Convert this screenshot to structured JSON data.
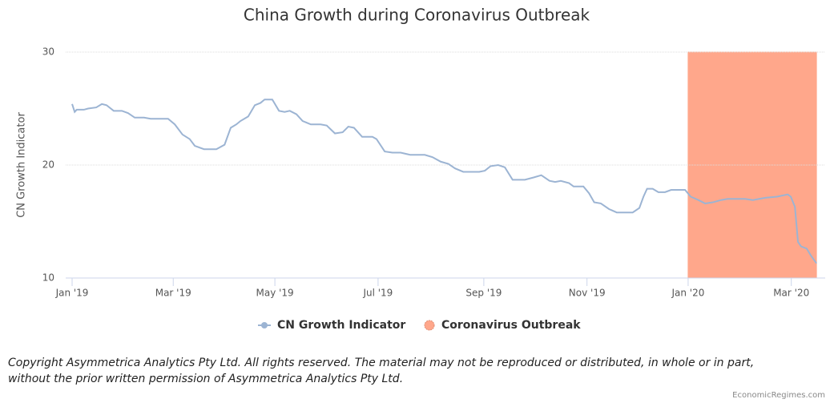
{
  "chart_data": {
    "type": "line",
    "title": "China Growth during Coronavirus Outbreak",
    "y_label": "CN Growth Indicator",
    "x": [
      0,
      0.05,
      0.09,
      0.23,
      0.31,
      0.47,
      0.58,
      0.67,
      0.81,
      0.97,
      1.09,
      1.22,
      1.4,
      1.53,
      1.69,
      1.87,
      2.0,
      2.15,
      2.29,
      2.39,
      2.57,
      2.81,
      2.97,
      3.09,
      3.2,
      3.28,
      3.43,
      3.56,
      3.67,
      3.75,
      3.9,
      4.03,
      4.14,
      4.24,
      4.37,
      4.49,
      4.65,
      4.84,
      4.96,
      5.12,
      5.27,
      5.38,
      5.49,
      5.65,
      5.85,
      5.93,
      6.09,
      6.24,
      6.4,
      6.59,
      6.87,
      7.02,
      7.18,
      7.33,
      7.46,
      7.62,
      7.93,
      8.04,
      8.15,
      8.3,
      8.43,
      8.58,
      8.82,
      8.99,
      9.14,
      9.3,
      9.41,
      9.52,
      9.68,
      9.77,
      9.96,
      10.07,
      10.17,
      10.3,
      10.46,
      10.61,
      10.92,
      11.05,
      11.13,
      11.2,
      11.31,
      11.42,
      11.55,
      11.67,
      11.94,
      12.05,
      12.2,
      12.33,
      12.48,
      12.64,
      12.77,
      13.11,
      13.26,
      13.5,
      13.73,
      13.94,
      14.0,
      14.08,
      14.14,
      14.2,
      14.31,
      14.39,
      14.5
    ],
    "series": [
      {
        "name": "CN Growth Indicator",
        "color": "#9cb4d3",
        "values": [
          25.4,
          24.7,
          24.9,
          24.9,
          25.0,
          25.1,
          25.4,
          25.3,
          24.8,
          24.8,
          24.6,
          24.2,
          24.2,
          24.1,
          24.1,
          24.1,
          23.6,
          22.7,
          22.3,
          21.7,
          21.4,
          21.4,
          21.8,
          23.3,
          23.6,
          23.9,
          24.3,
          25.3,
          25.5,
          25.8,
          25.8,
          24.8,
          24.7,
          24.8,
          24.5,
          23.9,
          23.6,
          23.6,
          23.5,
          22.8,
          22.9,
          23.4,
          23.3,
          22.5,
          22.5,
          22.3,
          21.2,
          21.1,
          21.1,
          20.9,
          20.9,
          20.7,
          20.3,
          20.1,
          19.7,
          19.4,
          19.4,
          19.5,
          19.9,
          20.0,
          19.8,
          18.7,
          18.7,
          18.9,
          19.1,
          18.6,
          18.5,
          18.6,
          18.4,
          18.1,
          18.1,
          17.5,
          16.7,
          16.6,
          16.1,
          15.8,
          15.8,
          16.2,
          17.2,
          17.9,
          17.9,
          17.6,
          17.6,
          17.8,
          17.8,
          17.2,
          16.9,
          16.6,
          16.7,
          16.9,
          17.0,
          17.0,
          16.9,
          17.1,
          17.2,
          17.4,
          17.2,
          16.3,
          13.2,
          12.8,
          12.6,
          12.0,
          11.3
        ]
      }
    ],
    "bands": [
      {
        "name": "Coronavirus Outbreak",
        "color": "#ffa78b",
        "from": 12.0,
        "to": 14.5
      }
    ],
    "xlim": [
      -0.125,
      14.67
    ],
    "xticks": [
      {
        "value": 0,
        "label": "Jan '19"
      },
      {
        "value": 1.97,
        "label": "Mar '19"
      },
      {
        "value": 3.95,
        "label": "May '19"
      },
      {
        "value": 5.96,
        "label": "Jul '19"
      },
      {
        "value": 8.02,
        "label": "Sep '19"
      },
      {
        "value": 10.03,
        "label": "Nov '19"
      },
      {
        "value": 12,
        "label": "Jan '20"
      },
      {
        "value": 14.01,
        "label": "Mar '20"
      }
    ],
    "ylim": [
      10,
      30
    ],
    "yticks": [
      10,
      20,
      30
    ],
    "grid": true
  },
  "footer": {
    "copyright_1": "Copyright Asymmetrica Analytics Pty Ltd. All rights reserved. The material may not be reproduced or distributed, in whole or in part,",
    "copyright_2": "without the prior written permission of Asymmetrica Analytics Pty Ltd.",
    "credit": "EconomicRegimes.com"
  }
}
